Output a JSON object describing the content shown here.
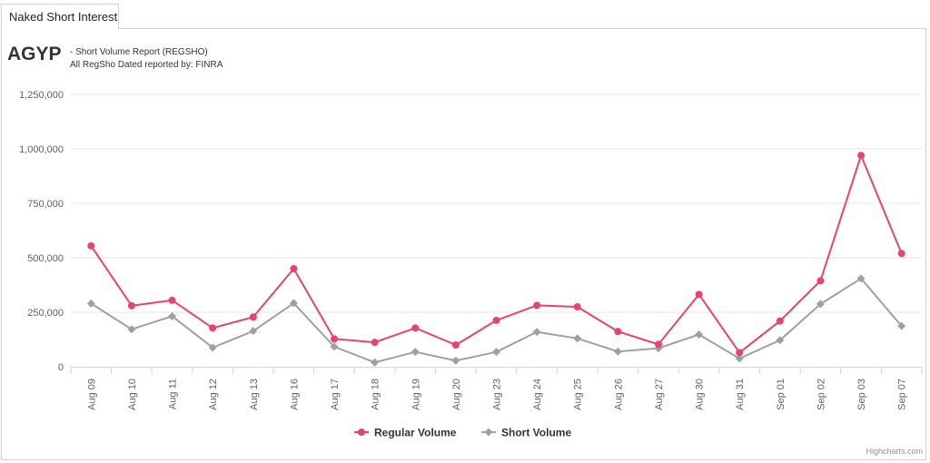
{
  "tab": {
    "label": "Naked Short Interest"
  },
  "header": {
    "ticker": "AGYP",
    "subtitle1": "- Short Volume Report  (REGSHO)",
    "subtitle2": "All RegSho Dated reported by: FINRA"
  },
  "credits": "Highcharts.com",
  "chart_data": {
    "type": "line",
    "title": "",
    "xlabel": "",
    "ylabel": "",
    "categories": [
      "Aug 09",
      "Aug 10",
      "Aug 11",
      "Aug 12",
      "Aug 13",
      "Aug 16",
      "Aug 17",
      "Aug 18",
      "Aug 19",
      "Aug 20",
      "Aug 23",
      "Aug 24",
      "Aug 25",
      "Aug 26",
      "Aug 27",
      "Aug 30",
      "Aug 31",
      "Sep 01",
      "Sep 02",
      "Sep 03",
      "Sep 07"
    ],
    "ylim": [
      0,
      1250000
    ],
    "yticks": [
      0,
      250000,
      500000,
      750000,
      1000000,
      1250000
    ],
    "ytick_labels": [
      "0",
      "250,000",
      "500,000",
      "750,000",
      "1,000,000",
      "1,250,000"
    ],
    "grid": true,
    "legend_position": "bottom-center",
    "series": [
      {
        "name": "Regular Volume",
        "color": "#e8436a",
        "marker": "circle",
        "values": [
          555000,
          280000,
          305000,
          178000,
          228000,
          450000,
          128000,
          112000,
          178000,
          100000,
          213000,
          282000,
          275000,
          162000,
          103000,
          332000,
          65000,
          210000,
          395000,
          970000,
          520000
        ]
      },
      {
        "name": "Short Volume",
        "color": "#a0a0a0",
        "marker": "diamond",
        "values": [
          290000,
          172000,
          232000,
          88000,
          164000,
          292000,
          92000,
          20000,
          68000,
          28000,
          68000,
          160000,
          130000,
          70000,
          85000,
          148000,
          38000,
          122000,
          288000,
          405000,
          187000
        ]
      }
    ]
  }
}
